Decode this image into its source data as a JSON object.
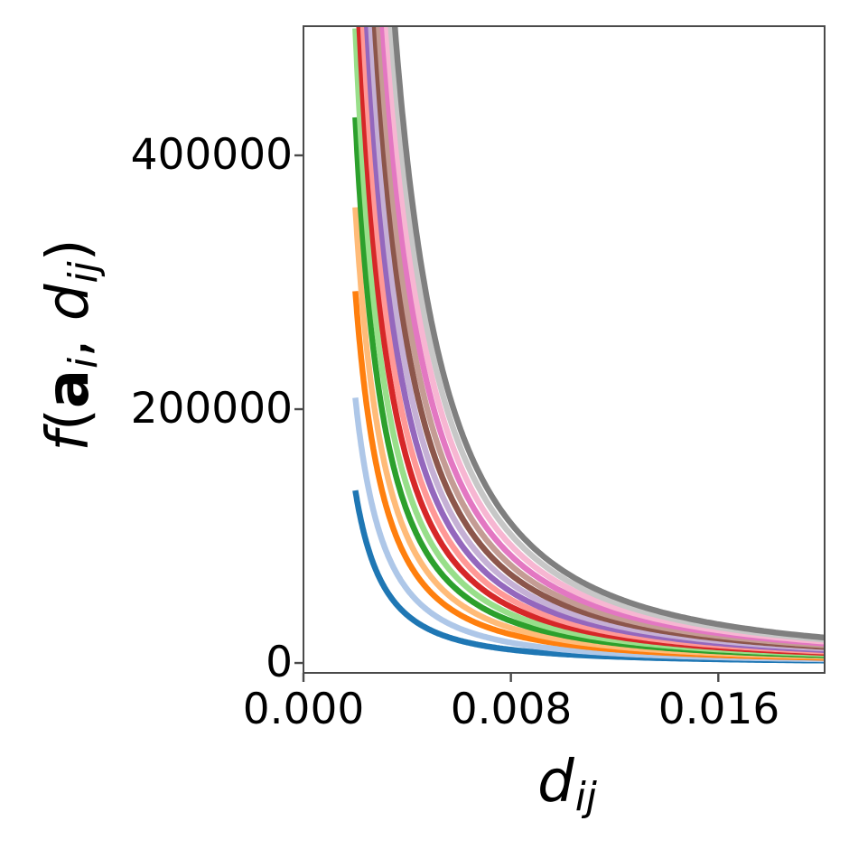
{
  "chart_data": {
    "type": "line",
    "title": "",
    "xlabel": {
      "text": "d_ij",
      "var": "d",
      "sub": "ij"
    },
    "ylabel": {
      "text": "f(a_i, d_ij)",
      "func": "f",
      "open": "(",
      "vec": "a",
      "vec_sub": "i",
      "sep": ", ",
      "var": "d",
      "var_sub": "ij",
      "close": ")"
    },
    "xlim": [
      0.0,
      0.0201
    ],
    "ylim": [
      -7800,
      501800
    ],
    "xticks": [
      0.0,
      0.008,
      0.016
    ],
    "xtick_labels": [
      "0.000",
      "0.008",
      "0.016"
    ],
    "yticks": [
      0,
      200000,
      400000
    ],
    "ytick_labels": [
      "0",
      "200000",
      "400000"
    ],
    "grid": false,
    "legend": "none",
    "model": "f(a_i, d_ij) = f_at_dmin * (d_ij / d_min)^(-exponent); curves clipped at axes top",
    "d_min": 0.002,
    "d_max": 0.0201,
    "exponent": 1.85,
    "line_width": 6.5,
    "series": [
      {
        "name": "blue",
        "color": "#1f77b4",
        "f_at_dmin": 136000
      },
      {
        "name": "light-blue",
        "color": "#aec7e8",
        "f_at_dmin": 209000
      },
      {
        "name": "orange",
        "color": "#ff7f0e",
        "f_at_dmin": 293000
      },
      {
        "name": "light-orange",
        "color": "#ffbb78",
        "f_at_dmin": 359000
      },
      {
        "name": "green",
        "color": "#2ca02c",
        "f_at_dmin": 430000
      },
      {
        "name": "light-green",
        "color": "#98df8a",
        "f_at_dmin": 500000
      },
      {
        "name": "red",
        "color": "#d62728",
        "f_at_dmin": 575000
      },
      {
        "name": "light-red",
        "color": "#ff9896",
        "f_at_dmin": 650000
      },
      {
        "name": "purple",
        "color": "#9467bd",
        "f_at_dmin": 730000
      },
      {
        "name": "light-purple",
        "color": "#c5b0d5",
        "f_at_dmin": 815000
      },
      {
        "name": "brown",
        "color": "#8c564b",
        "f_at_dmin": 905000
      },
      {
        "name": "light-brown",
        "color": "#c49c94",
        "f_at_dmin": 1000000
      },
      {
        "name": "pink",
        "color": "#e377c2",
        "f_at_dmin": 1100000
      },
      {
        "name": "light-pink",
        "color": "#f7b6d2",
        "f_at_dmin": 1205000
      },
      {
        "name": "light-gray",
        "color": "#c7c7c7",
        "f_at_dmin": 1315000
      },
      {
        "name": "gray",
        "color": "#7f7f7f",
        "f_at_dmin": 1430000
      }
    ],
    "axes_color": "#4a4a4a"
  }
}
